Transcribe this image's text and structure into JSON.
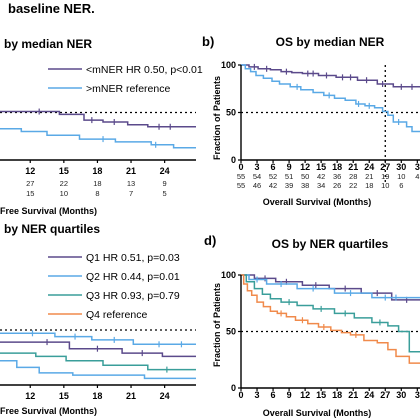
{
  "figure": {
    "title": "baseline NER.",
    "colors": {
      "purple": "#5b4a8b",
      "blue": "#5aa9e6",
      "teal": "#3a9e9a",
      "orange": "#f08a4b",
      "axis": "#000000"
    }
  },
  "chart_data": [
    {
      "id": "a",
      "type": "line",
      "title": "by median NER",
      "xlabel": "Free Survival (Months)",
      "xticks": [
        "12",
        "15",
        "18",
        "21",
        "24"
      ],
      "xlim": [
        9.3,
        26.8
      ],
      "ylim": [
        0,
        100
      ],
      "reference_line_y": 50,
      "legend": {
        "placement": "top-right",
        "entries": [
          "<mNER HR 0.50, p<0.01",
          ">mNER reference"
        ]
      },
      "risk_table": [
        [
          "27",
          "22",
          "18",
          "13",
          "9"
        ],
        [
          "15",
          "10",
          "8",
          "7",
          "5"
        ]
      ],
      "series": [
        {
          "name": "<mNER HR 0.50, p<0.01",
          "color": "purple",
          "steps": [
            [
              9.3,
              51
            ],
            [
              14.6,
              48
            ],
            [
              16.8,
              42
            ],
            [
              18.5,
              40
            ],
            [
              20.7,
              37
            ],
            [
              22.5,
              35
            ],
            [
              26.8,
              35
            ]
          ],
          "censors": [
            [
              12.8,
              51
            ],
            [
              17.5,
              42
            ],
            [
              19.5,
              40
            ],
            [
              23.5,
              35
            ],
            [
              24.5,
              35
            ]
          ]
        },
        {
          "name": ">mNER reference",
          "color": "blue",
          "steps": [
            [
              9.3,
              33
            ],
            [
              11.2,
              30
            ],
            [
              13.5,
              26
            ],
            [
              16.4,
              22
            ],
            [
              19.6,
              19
            ],
            [
              22.8,
              16
            ],
            [
              24.8,
              13
            ],
            [
              26.8,
              13
            ]
          ],
          "censors": [
            [
              18.5,
              22
            ],
            [
              23.2,
              16
            ]
          ]
        }
      ]
    },
    {
      "id": "b",
      "label": "b)",
      "type": "line",
      "title": "OS by median NER",
      "xlabel": "Overall Survival (Months)",
      "ylabel": "Fraction of Patients",
      "yticks": [
        "0",
        "50",
        "100"
      ],
      "xticks": [
        "0",
        "3",
        "6",
        "9",
        "12",
        "15",
        "18",
        "21",
        "24",
        "27",
        "30",
        "3"
      ],
      "xlim": [
        0,
        33.5
      ],
      "ylim": [
        0,
        100
      ],
      "reference_line_y": 50,
      "reference_line_x": 27,
      "risk_table": [
        [
          "55",
          "54",
          "52",
          "51",
          "50",
          "42",
          "36",
          "28",
          "21",
          "19",
          "10",
          "4"
        ],
        [
          "55",
          "46",
          "42",
          "39",
          "38",
          "34",
          "26",
          "22",
          "18",
          "10",
          "6",
          ""
        ]
      ],
      "series": [
        {
          "name": "<mNER",
          "color": "purple",
          "steps": [
            [
              0,
              100
            ],
            [
              1.5,
              98
            ],
            [
              3.2,
              96
            ],
            [
              5.5,
              95
            ],
            [
              7.5,
              93
            ],
            [
              9.5,
              92
            ],
            [
              11.5,
              91
            ],
            [
              14.5,
              89
            ],
            [
              17.8,
              87
            ],
            [
              21.8,
              84
            ],
            [
              25.5,
              80
            ],
            [
              28.5,
              77
            ],
            [
              33.5,
              77
            ]
          ],
          "censors": [
            [
              2.5,
              98
            ],
            [
              4.8,
              96
            ],
            [
              8.5,
              93
            ],
            [
              12.5,
              91
            ],
            [
              13.5,
              91
            ],
            [
              16,
              89
            ],
            [
              19,
              87
            ],
            [
              20.5,
              87
            ],
            [
              23.5,
              84
            ],
            [
              26.5,
              80
            ],
            [
              30,
              77
            ],
            [
              32,
              77
            ]
          ]
        },
        {
          "name": ">mNER",
          "color": "blue",
          "steps": [
            [
              0,
              100
            ],
            [
              0.8,
              96
            ],
            [
              1.8,
              93
            ],
            [
              2.8,
              89
            ],
            [
              4.2,
              86
            ],
            [
              5.8,
              83
            ],
            [
              7.2,
              80
            ],
            [
              9.2,
              77
            ],
            [
              11.2,
              74
            ],
            [
              13.5,
              71
            ],
            [
              15.5,
              68
            ],
            [
              17.5,
              65
            ],
            [
              19.5,
              63
            ],
            [
              21.5,
              59
            ],
            [
              23.2,
              57
            ],
            [
              25,
              55
            ],
            [
              26.5,
              51
            ],
            [
              27.5,
              47
            ],
            [
              28.5,
              40
            ],
            [
              31,
              35
            ],
            [
              32,
              30
            ],
            [
              33.5,
              30
            ]
          ],
          "censors": [
            [
              10.5,
              77
            ],
            [
              16.5,
              68
            ],
            [
              22,
              59
            ],
            [
              24,
              57
            ],
            [
              29.5,
              40
            ]
          ]
        }
      ]
    },
    {
      "id": "c",
      "type": "line",
      "title": "by NER quartiles",
      "xlabel": "Free Survival (Months)",
      "xticks": [
        "12",
        "15",
        "18",
        "21",
        "24"
      ],
      "xlim": [
        9.3,
        26.8
      ],
      "ylim": [
        0,
        100
      ],
      "reference_line_y": 50,
      "legend": {
        "placement": "top-right",
        "entries": [
          "Q1 HR 0.51, p=0.03",
          "Q2 HR 0.44, p=0.01",
          "Q3 HR 0.93, p=0.79",
          "Q4 reference"
        ]
      },
      "series": [
        {
          "name": "Q1 HR 0.51, p=0.03",
          "color": "purple",
          "steps": [
            [
              9.3,
              39
            ],
            [
              15.5,
              33
            ],
            [
              20.2,
              29
            ],
            [
              23.8,
              26
            ],
            [
              26.8,
              26
            ]
          ],
          "censors": [
            [
              13.5,
              39
            ],
            [
              18,
              33
            ],
            [
              22,
              29
            ]
          ]
        },
        {
          "name": "Q2 HR 0.44, p=0.01",
          "color": "blue",
          "steps": [
            [
              9.3,
              47
            ],
            [
              14.2,
              44
            ],
            [
              17.5,
              41
            ],
            [
              21.2,
              37
            ],
            [
              26.8,
              37
            ]
          ],
          "censors": [
            [
              12.2,
              47
            ],
            [
              16,
              44
            ],
            [
              19.5,
              41
            ],
            [
              23.5,
              37
            ],
            [
              25.5,
              37
            ]
          ]
        },
        {
          "name": "Q3 HR 0.93, p=0.79",
          "color": "teal",
          "steps": [
            [
              9.3,
              29
            ],
            [
              12.5,
              26
            ],
            [
              15.2,
              22
            ],
            [
              18.5,
              18
            ],
            [
              22.5,
              14
            ],
            [
              26.8,
              14
            ]
          ],
          "censors": [
            [
              24.2,
              14
            ]
          ]
        },
        {
          "name": "Q4 reference",
          "color": "blue",
          "steps": [
            [
              9.3,
              22
            ],
            [
              10.8,
              16
            ],
            [
              12.8,
              11
            ],
            [
              15.8,
              9
            ],
            [
              19.5,
              9
            ],
            [
              22.2,
              6
            ],
            [
              26.8,
              6
            ]
          ],
          "censors": []
        }
      ]
    },
    {
      "id": "d",
      "label": "d)",
      "type": "line",
      "title": "OS by NER quartiles",
      "xlabel": "Overall Survival (Months)",
      "ylabel": "Fraction of Patients",
      "yticks": [
        "0",
        "50",
        "100"
      ],
      "xticks": [
        "0",
        "3",
        "6",
        "9",
        "12",
        "15",
        "18",
        "21",
        "24",
        "27",
        "30",
        "3"
      ],
      "xlim": [
        0,
        33.5
      ],
      "ylim": [
        0,
        100
      ],
      "reference_line_y": 50,
      "series": [
        {
          "name": "Q1",
          "color": "purple",
          "steps": [
            [
              0,
              100
            ],
            [
              2.5,
              97
            ],
            [
              6.5,
              94
            ],
            [
              11.5,
              91
            ],
            [
              16.5,
              88
            ],
            [
              22.5,
              84
            ],
            [
              28.2,
              78
            ],
            [
              33.5,
              78
            ]
          ],
          "censors": [
            [
              4.5,
              97
            ],
            [
              8.5,
              94
            ],
            [
              14,
              91
            ],
            [
              19.5,
              88
            ],
            [
              25.5,
              84
            ],
            [
              31,
              78
            ]
          ]
        },
        {
          "name": "Q2",
          "color": "blue",
          "steps": [
            [
              0,
              100
            ],
            [
              1.5,
              96
            ],
            [
              4.8,
              92
            ],
            [
              10.5,
              88
            ],
            [
              17.5,
              84
            ],
            [
              24.5,
              80
            ],
            [
              33.5,
              80
            ]
          ],
          "censors": [
            [
              3,
              96
            ],
            [
              7.5,
              92
            ],
            [
              13.5,
              88
            ],
            [
              20.5,
              84
            ],
            [
              27,
              80
            ],
            [
              29,
              80
            ]
          ]
        },
        {
          "name": "Q3",
          "color": "teal",
          "steps": [
            [
              0,
              100
            ],
            [
              1,
              94
            ],
            [
              2.5,
              88
            ],
            [
              4,
              83
            ],
            [
              5.5,
              79
            ],
            [
              7.5,
              76
            ],
            [
              10.5,
              73
            ],
            [
              13.5,
              70
            ],
            [
              17.5,
              66
            ],
            [
              21.2,
              62
            ],
            [
              24.5,
              58
            ],
            [
              27.5,
              55
            ],
            [
              29.5,
              50
            ],
            [
              31.5,
              32
            ],
            [
              33.5,
              32
            ]
          ],
          "censors": [
            [
              9,
              76
            ],
            [
              15,
              70
            ],
            [
              19.5,
              66
            ],
            [
              26,
              58
            ]
          ]
        },
        {
          "name": "Q4",
          "color": "orange",
          "steps": [
            [
              0,
              100
            ],
            [
              0.5,
              92
            ],
            [
              1.2,
              86
            ],
            [
              2,
              82
            ],
            [
              3,
              76
            ],
            [
              4.2,
              72
            ],
            [
              5.5,
              68
            ],
            [
              6.8,
              66
            ],
            [
              8.5,
              63
            ],
            [
              10.2,
              60
            ],
            [
              12.5,
              57
            ],
            [
              14.5,
              54
            ],
            [
              16.8,
              51
            ],
            [
              18.8,
              49
            ],
            [
              20.5,
              47
            ],
            [
              23,
              42
            ],
            [
              25.5,
              40
            ],
            [
              27.5,
              34
            ],
            [
              29,
              28
            ],
            [
              31.5,
              22
            ],
            [
              33.5,
              22
            ]
          ],
          "censors": [
            [
              7.5,
              66
            ],
            [
              11.5,
              60
            ],
            [
              15.5,
              54
            ],
            [
              21.5,
              47
            ]
          ]
        }
      ]
    }
  ]
}
